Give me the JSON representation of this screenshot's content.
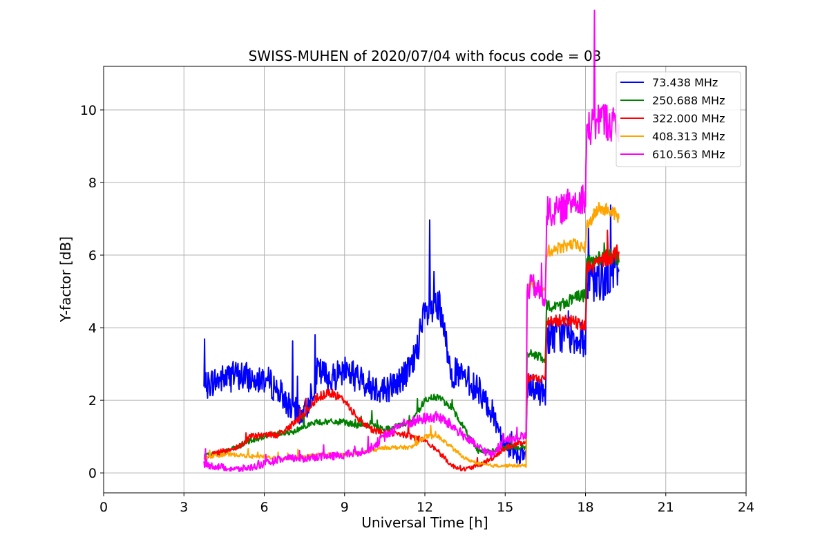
{
  "chart_data": {
    "type": "line",
    "title": "SWISS-MUHEN of 2020/07/04 with focus code = 03",
    "xlabel": "Universal Time [h]",
    "ylabel": "Y-factor [dB]",
    "xlim": [
      0,
      24
    ],
    "ylim": [
      -0.55,
      11.2
    ],
    "xticks": [
      0,
      3,
      6,
      9,
      12,
      15,
      18,
      21,
      24
    ],
    "yticks": [
      0,
      2,
      4,
      6,
      8,
      10
    ],
    "grid": true,
    "legend_position": "top-right",
    "series": [
      {
        "name": " 73.438 MHz",
        "color": "#0000ff",
        "x": [
          3.75,
          4.0,
          4.5,
          5.0,
          5.5,
          6.0,
          6.5,
          7.0,
          7.5,
          8.0,
          8.5,
          9.0,
          9.5,
          10.0,
          10.5,
          11.0,
          11.5,
          12.0,
          12.5,
          13.0,
          13.5,
          14.0,
          14.5,
          15.0,
          15.5,
          15.78,
          15.82,
          16.0,
          16.5,
          16.55,
          17.0,
          17.5,
          18.0,
          18.05,
          18.5,
          19.0,
          19.25
        ],
        "y": [
          2.3,
          2.5,
          2.6,
          2.7,
          2.6,
          2.6,
          2.3,
          1.8,
          1.6,
          2.8,
          2.6,
          2.9,
          2.6,
          2.4,
          2.3,
          2.5,
          2.9,
          4.3,
          4.6,
          2.8,
          2.6,
          2.3,
          1.7,
          0.8,
          0.5,
          0.5,
          2.3,
          2.3,
          2.2,
          3.8,
          3.8,
          3.8,
          3.6,
          5.2,
          5.3,
          5.5,
          5.6
        ]
      },
      {
        "name": "250.688 MHz",
        "color": "#008000",
        "x": [
          3.75,
          4.0,
          4.5,
          5.0,
          5.5,
          6.0,
          6.5,
          7.0,
          7.5,
          8.0,
          8.5,
          9.0,
          9.5,
          10.0,
          10.5,
          11.0,
          11.5,
          12.0,
          12.5,
          13.0,
          13.5,
          14.0,
          14.5,
          15.0,
          15.5,
          15.78,
          15.82,
          16.0,
          16.5,
          16.55,
          17.0,
          17.5,
          18.0,
          18.05,
          18.5,
          19.0,
          19.25
        ],
        "y": [
          0.5,
          0.5,
          0.6,
          0.7,
          0.9,
          1.0,
          1.1,
          1.1,
          1.3,
          1.4,
          1.4,
          1.4,
          1.3,
          1.3,
          1.2,
          1.3,
          1.4,
          2.0,
          2.1,
          1.8,
          1.2,
          0.6,
          0.6,
          0.7,
          0.7,
          0.7,
          3.2,
          3.3,
          3.1,
          4.6,
          4.6,
          4.8,
          4.9,
          5.8,
          5.9,
          6.0,
          5.8
        ]
      },
      {
        "name": "322.000 MHz",
        "color": "#ff0000",
        "x": [
          3.75,
          4.0,
          4.5,
          5.0,
          5.5,
          6.0,
          6.5,
          7.0,
          7.5,
          8.0,
          8.5,
          9.0,
          9.5,
          10.0,
          10.5,
          11.0,
          11.5,
          12.0,
          12.5,
          13.0,
          13.5,
          14.0,
          14.5,
          15.0,
          15.5,
          15.78,
          15.82,
          16.0,
          16.5,
          16.55,
          17.0,
          17.5,
          18.0,
          18.05,
          18.5,
          19.0,
          19.25
        ],
        "y": [
          0.4,
          0.5,
          0.6,
          0.7,
          1.0,
          1.05,
          1.05,
          1.3,
          1.6,
          2.1,
          2.2,
          2.0,
          1.5,
          1.2,
          1.1,
          1.1,
          1.0,
          0.9,
          0.6,
          0.2,
          0.1,
          0.2,
          0.4,
          0.7,
          0.8,
          0.8,
          2.6,
          2.6,
          2.6,
          4.2,
          4.2,
          4.2,
          4.0,
          5.6,
          5.8,
          6.0,
          6.1
        ]
      },
      {
        "name": "408.313 MHz",
        "color": "#ffa500",
        "x": [
          3.75,
          4.0,
          4.5,
          5.0,
          5.5,
          6.0,
          6.5,
          7.0,
          7.5,
          8.0,
          8.5,
          9.0,
          9.5,
          10.0,
          10.5,
          11.0,
          11.5,
          12.0,
          12.5,
          13.0,
          13.5,
          14.0,
          14.5,
          15.0,
          15.5,
          15.78,
          15.82,
          16.0,
          16.5,
          16.55,
          17.0,
          17.5,
          18.0,
          18.05,
          18.5,
          19.0,
          19.25
        ],
        "y": [
          0.4,
          0.45,
          0.5,
          0.5,
          0.45,
          0.45,
          0.4,
          0.4,
          0.45,
          0.5,
          0.5,
          0.5,
          0.55,
          0.6,
          0.7,
          0.7,
          0.7,
          1.0,
          1.0,
          0.7,
          0.4,
          0.25,
          0.2,
          0.2,
          0.2,
          0.2,
          5.0,
          5.2,
          5.0,
          6.1,
          6.2,
          6.3,
          6.2,
          6.8,
          7.3,
          7.2,
          7.0
        ]
      },
      {
        "name": "610.563 MHz",
        "color": "#ff00ff",
        "x": [
          3.75,
          4.0,
          4.5,
          5.0,
          5.5,
          6.0,
          6.5,
          7.0,
          7.5,
          8.0,
          8.5,
          9.0,
          9.5,
          10.0,
          10.5,
          11.0,
          11.5,
          12.0,
          12.5,
          13.0,
          13.5,
          14.0,
          14.5,
          15.0,
          15.5,
          15.78,
          15.82,
          16.0,
          16.5,
          16.55,
          17.0,
          17.5,
          18.0,
          18.05,
          18.5,
          19.0,
          19.25
        ],
        "y": [
          0.25,
          0.2,
          0.15,
          0.1,
          0.15,
          0.25,
          0.35,
          0.4,
          0.4,
          0.45,
          0.45,
          0.5,
          0.55,
          0.7,
          1.0,
          1.3,
          1.4,
          1.5,
          1.55,
          1.3,
          1.0,
          0.7,
          0.5,
          0.9,
          1.0,
          1.0,
          5.0,
          5.2,
          4.8,
          7.2,
          7.2,
          7.5,
          7.6,
          9.4,
          9.8,
          9.6,
          9.6
        ]
      }
    ]
  }
}
